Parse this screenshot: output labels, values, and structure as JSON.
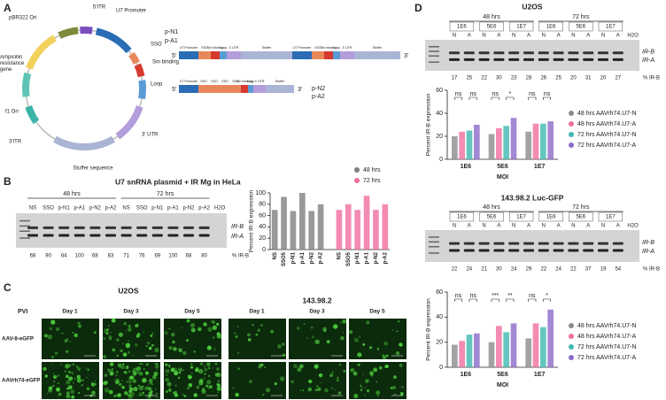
{
  "figure": {
    "panel_labels": [
      "A",
      "B",
      "C",
      "D"
    ],
    "plasmid": {
      "features": [
        {
          "label": "5'ITR",
          "color": "#7b4fc0"
        },
        {
          "label": "U7 Promoter",
          "color": "#2a6db5"
        },
        {
          "label": "SSO",
          "color": "#e8885a"
        },
        {
          "label": "Sm binding",
          "color": "#d63a2f"
        },
        {
          "label": "Loop",
          "color": "#5b9bd5"
        },
        {
          "label": "3' UTR",
          "color": "#b39ddb"
        },
        {
          "label": "Stuffer sequence",
          "color": "#aab4d4"
        },
        {
          "label": "3'ITR",
          "color": "#3bb3a6"
        },
        {
          "label": "f1 Ori",
          "color": "#5ec4b6"
        },
        {
          "label": "Ampicillin resistance gene",
          "color": "#f2d15c"
        },
        {
          "label": "pBR322 Ori",
          "color": "#7a8b3a"
        }
      ]
    },
    "constructs": [
      {
        "names": [
          "p-N1",
          "p-A1"
        ],
        "ends": [
          "5'",
          "3'"
        ],
        "segments": [
          {
            "label": "U7 Promoter",
            "color": "#2a6db5"
          },
          {
            "label": "SSO",
            "color": "#e8885a"
          },
          {
            "label": "Sm binding",
            "color": "#d63a2f"
          },
          {
            "label": "Loop",
            "color": "#5b9bd5"
          },
          {
            "label": "3' UTR",
            "color": "#b39ddb"
          },
          {
            "label": "Stuffer",
            "color": "#aab4d4"
          },
          {
            "label": "U7 Promoter",
            "color": "#2a6db5"
          },
          {
            "label": "SSO",
            "color": "#e8885a"
          },
          {
            "label": "Sm binding",
            "color": "#d63a2f"
          },
          {
            "label": "Loop",
            "color": "#5b9bd5"
          },
          {
            "label": "3' UTR",
            "color": "#b39ddb"
          },
          {
            "label": "Stuffer",
            "color": "#aab4d4"
          }
        ]
      },
      {
        "names": [
          "p-N2",
          "p-A2"
        ],
        "ends": [
          "5'",
          "3'"
        ],
        "segments": [
          {
            "label": "U7 Promoter",
            "color": "#2a6db5"
          },
          {
            "label": "SSO",
            "color": "#e8885a"
          },
          {
            "label": "SSO",
            "color": "#e8885a"
          },
          {
            "label": "SSO",
            "color": "#e8885a"
          },
          {
            "label": "SSO",
            "color": "#e8885a"
          },
          {
            "label": "Sm binding",
            "color": "#d63a2f"
          },
          {
            "label": "Loop",
            "color": "#5b9bd5"
          },
          {
            "label": "3' UTR",
            "color": "#b39ddb"
          },
          {
            "label": "Stuffer",
            "color": "#aab4d4"
          }
        ]
      }
    ],
    "panel_b_title": "U7 snRNA plasmid + IR Mg in HeLa",
    "gels": [
      {
        "groups": [
          "48 hrs",
          "72 hrs"
        ],
        "lanes": [
          "NS",
          "SSO",
          "p-N1",
          "p-A1",
          "p-N2",
          "p-A2"
        ],
        "control": "H2O",
        "bands": [
          "IR-B",
          "IR-A"
        ],
        "percent_label": "% IR-B",
        "percents": [
          68,
          90,
          64,
          100,
          68,
          83,
          71,
          76,
          69,
          100,
          68,
          80
        ]
      },
      {
        "title": "U2OS",
        "groups": [
          "48 hrs",
          "72 hrs"
        ],
        "doses": [
          "1E6",
          "5E6",
          "1E7"
        ],
        "lanes": [
          "N",
          "A"
        ],
        "control": "H2O",
        "bands": [
          "IR-B",
          "IR-A"
        ],
        "percent_label": "% IR-B",
        "percents": [
          17,
          25,
          22,
          30,
          23,
          28,
          26,
          25,
          20,
          31,
          20,
          27
        ]
      },
      {
        "title": "143.98.2 Luc-GFP",
        "groups": [
          "48 hrs",
          "72 hrs"
        ],
        "doses": [
          "1E6",
          "5E6",
          "1E7"
        ],
        "lanes": [
          "N",
          "A"
        ],
        "control": "H2O",
        "bands": [
          "IR-B",
          "IR-A"
        ],
        "percent_label": "% IR-B",
        "percents": [
          22,
          24,
          21,
          30,
          24,
          29,
          22,
          24,
          22,
          37,
          19,
          54
        ]
      }
    ],
    "micrographs": {
      "cell_lines": [
        "U2OS",
        "143.98.2"
      ],
      "row_header": "PVI",
      "days": [
        "Day 1",
        "Day 3",
        "Day 5"
      ],
      "vectors": [
        "AAV-8-eGFP",
        "AAVrh74-eGFP"
      ]
    }
  },
  "chart_data": [
    {
      "type": "bar",
      "ylabel": "Percent IR-B expression",
      "categories": [
        "NS",
        "SSO5",
        "p-N1",
        "p-A1",
        "p-N2",
        "p-A2",
        "NS",
        "SSO5",
        "p-N1",
        "p-A1",
        "p-N2",
        "p-A2"
      ],
      "series": [
        {
          "name": "48 hrs",
          "color": "#7f7f7f",
          "values": [
            70,
            93,
            68,
            100,
            68,
            80,
            null,
            null,
            null,
            null,
            null,
            null
          ]
        },
        {
          "name": "72 hrs",
          "color": "#f06ea0",
          "values": [
            null,
            null,
            null,
            null,
            null,
            null,
            70,
            80,
            70,
            95,
            70,
            80
          ]
        }
      ],
      "ylim": [
        0,
        100
      ],
      "yticks": [
        0,
        20,
        40,
        60,
        80,
        100
      ]
    },
    {
      "type": "bar",
      "ylabel": "Percent IR-B expression",
      "xlabel": "MOI",
      "categories": [
        "1E6",
        "5E6",
        "1E7"
      ],
      "series": [
        {
          "name": "48 hrs AAVrh74.U7-N",
          "color": "#8c8c8c",
          "values": [
            20,
            22,
            24
          ]
        },
        {
          "name": "48 hrs AAVrh74.U7-A",
          "color": "#f06ea0",
          "values": [
            24,
            27,
            31
          ]
        },
        {
          "name": "72 hrs AAVrh74.U7-N",
          "color": "#3fb8b0",
          "values": [
            25,
            29,
            31
          ]
        },
        {
          "name": "72 hrs AAVrh74.U7-A",
          "color": "#8c6bc8",
          "values": [
            30,
            36,
            33
          ]
        }
      ],
      "significance": [
        [
          "ns",
          "ns"
        ],
        [
          "ns",
          "*"
        ],
        [
          "ns",
          "ns"
        ]
      ],
      "ylim": [
        0,
        60
      ],
      "yticks": [
        0,
        20,
        40,
        60
      ]
    },
    {
      "type": "bar",
      "ylabel": "Percent IR-B expression",
      "xlabel": "MOI",
      "categories": [
        "1E6",
        "5E6",
        "1E7"
      ],
      "series": [
        {
          "name": "48 hrs AAVrh74.U7-N",
          "color": "#8c8c8c",
          "values": [
            18,
            20,
            23
          ]
        },
        {
          "name": "48 hrs AAVrh74.U7-A",
          "color": "#f06ea0",
          "values": [
            21,
            33,
            35
          ]
        },
        {
          "name": "72 hrs AAVrh74.U7-N",
          "color": "#3fb8b0",
          "values": [
            26,
            28,
            32
          ]
        },
        {
          "name": "72 hrs AAVrh74.U7-A",
          "color": "#8c6bc8",
          "values": [
            27,
            35,
            46
          ]
        }
      ],
      "significance": [
        [
          "ns",
          "ns"
        ],
        [
          "***",
          "**"
        ],
        [
          "ns",
          "*"
        ]
      ],
      "ylim": [
        0,
        60
      ],
      "yticks": [
        0,
        20,
        40,
        60
      ]
    }
  ]
}
